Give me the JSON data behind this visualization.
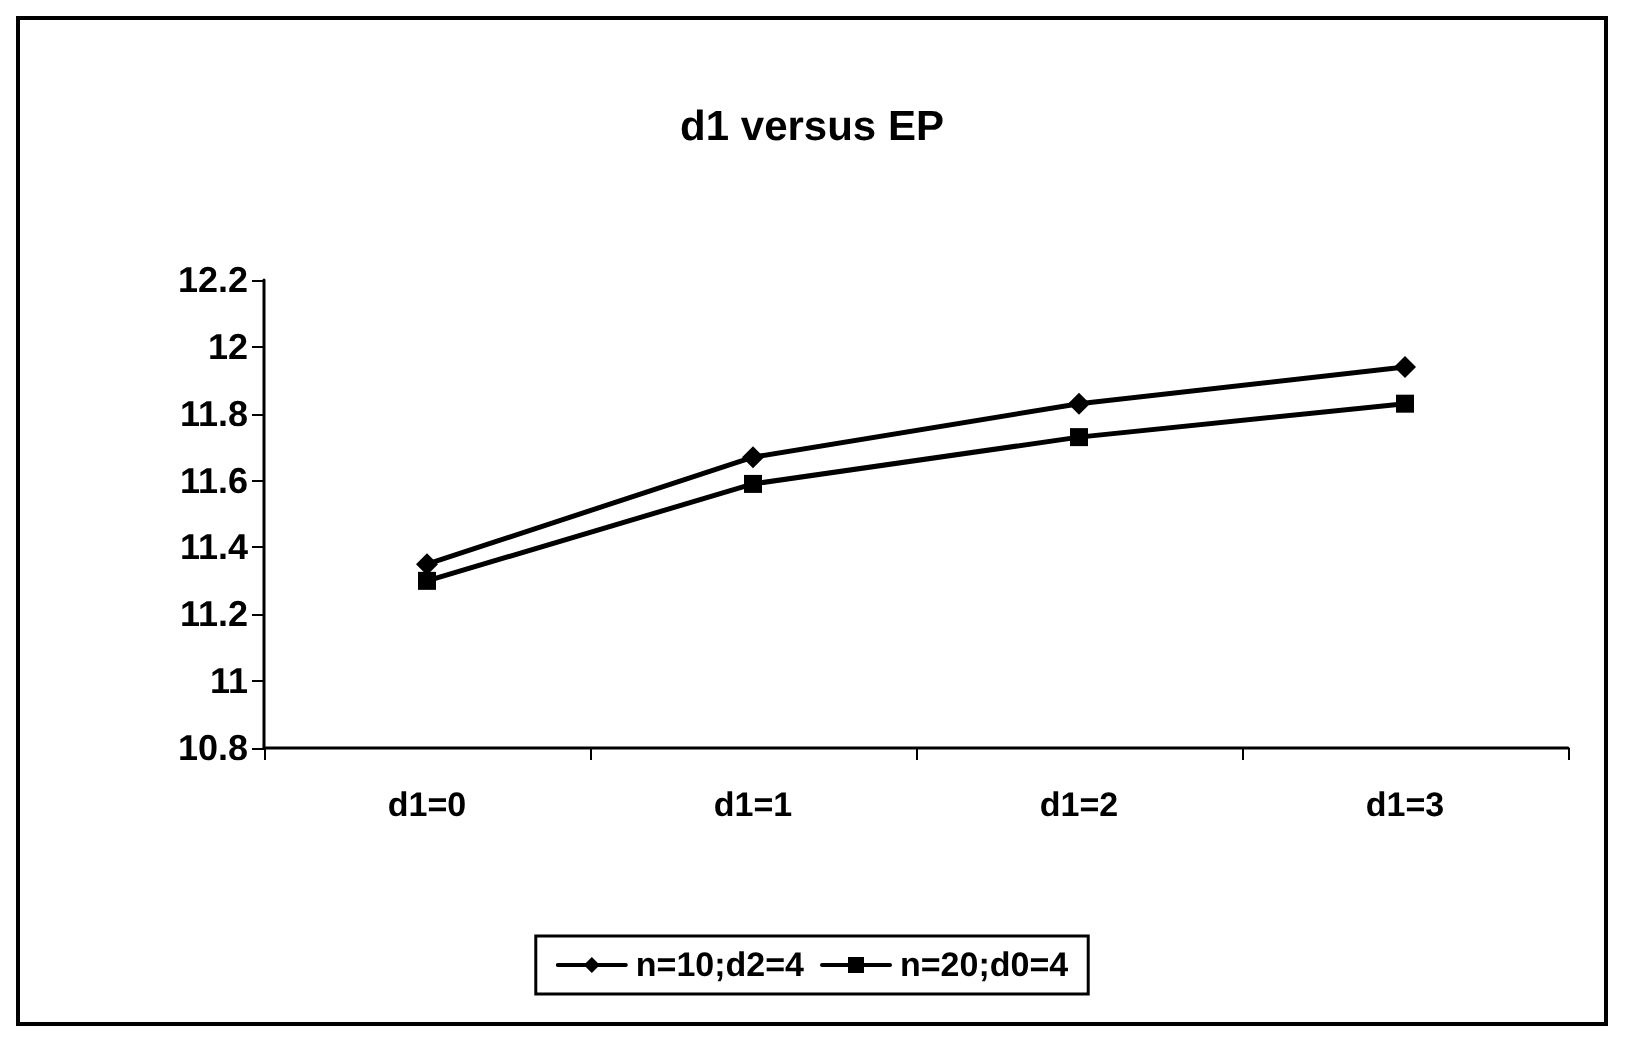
{
  "chart_data": {
    "type": "line",
    "title": "d1 versus EP",
    "categories": [
      "d1=0",
      "d1=1",
      "d1=2",
      "d1=3"
    ],
    "series": [
      {
        "name": "n=10;d2=4",
        "color": "#000000",
        "values": [
          11.35,
          11.67,
          11.83,
          11.94
        ],
        "marker": "diamond"
      },
      {
        "name": "n=20;d0=4",
        "color": "#000000",
        "values": [
          11.3,
          11.59,
          11.73,
          11.83
        ],
        "marker": "square"
      }
    ],
    "ylim": [
      10.8,
      12.2
    ],
    "yticks": [
      10.8,
      11,
      11.2,
      11.4,
      11.6,
      11.8,
      12,
      12.2
    ],
    "grid": false,
    "legend": "bottom",
    "line_style": "solid"
  }
}
